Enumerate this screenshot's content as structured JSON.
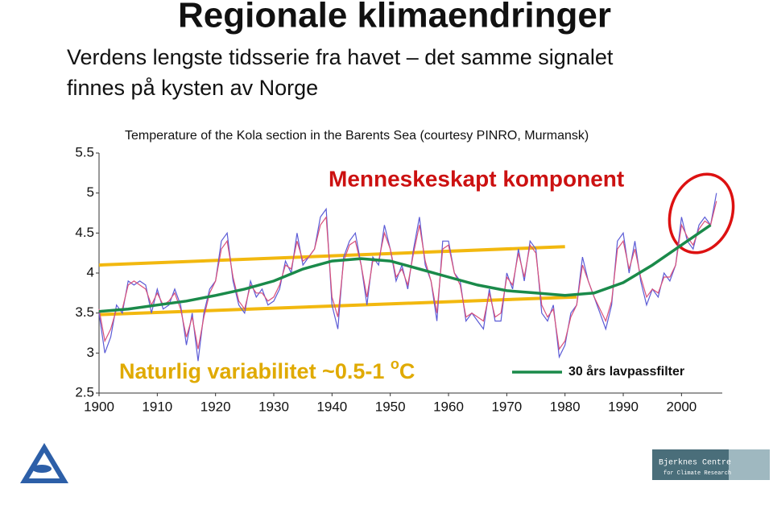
{
  "title": "Regionale klimaendringer",
  "subtitle": [
    "Verdens lengste tidsserie fra havet – det samme signalet",
    "finnes på kysten av Norge"
  ],
  "logo_text": [
    "Bjerknes Centre",
    "for Climate Research"
  ],
  "chart_data": {
    "type": "line",
    "title": "Temperature of the Kola section in the Barents Sea (courtesy PINRO, Murmansk)",
    "x": [
      1900,
      1901,
      1902,
      1903,
      1904,
      1905,
      1906,
      1907,
      1908,
      1909,
      1910,
      1911,
      1912,
      1913,
      1914,
      1915,
      1916,
      1917,
      1918,
      1919,
      1920,
      1921,
      1922,
      1923,
      1924,
      1925,
      1926,
      1927,
      1928,
      1929,
      1930,
      1931,
      1932,
      1933,
      1934,
      1935,
      1936,
      1937,
      1938,
      1939,
      1940,
      1941,
      1942,
      1943,
      1944,
      1945,
      1946,
      1947,
      1948,
      1949,
      1950,
      1951,
      1952,
      1953,
      1954,
      1955,
      1956,
      1957,
      1958,
      1959,
      1960,
      1961,
      1962,
      1963,
      1964,
      1965,
      1966,
      1967,
      1968,
      1969,
      1970,
      1971,
      1972,
      1973,
      1974,
      1975,
      1976,
      1977,
      1978,
      1979,
      1980,
      1981,
      1982,
      1983,
      1984,
      1985,
      1986,
      1987,
      1988,
      1989,
      1990,
      1991,
      1992,
      1993,
      1994,
      1995,
      1996,
      1997,
      1998,
      1999,
      2000,
      2001,
      2002,
      2003,
      2004,
      2005,
      2006
    ],
    "series": [
      {
        "color": "#5b5bd6",
        "values": [
          3.5,
          3.0,
          3.2,
          3.6,
          3.5,
          3.9,
          3.85,
          3.9,
          3.85,
          3.5,
          3.8,
          3.55,
          3.6,
          3.8,
          3.6,
          3.1,
          3.5,
          2.9,
          3.5,
          3.8,
          3.9,
          4.4,
          4.5,
          3.9,
          3.6,
          3.5,
          3.9,
          3.7,
          3.8,
          3.6,
          3.65,
          3.8,
          4.15,
          4.0,
          4.5,
          4.1,
          4.2,
          4.3,
          4.7,
          4.8,
          3.6,
          3.3,
          4.2,
          4.4,
          4.5,
          4.1,
          3.6,
          4.2,
          4.1,
          4.6,
          4.3,
          3.9,
          4.1,
          3.8,
          4.3,
          4.7,
          4.1,
          3.9,
          3.4,
          4.4,
          4.4,
          4.0,
          3.9,
          3.4,
          3.5,
          3.4,
          3.3,
          3.8,
          3.4,
          3.4,
          4.0,
          3.8,
          4.3,
          3.9,
          4.4,
          4.3,
          3.5,
          3.4,
          3.6,
          2.95,
          3.1,
          3.5,
          3.6,
          4.2,
          3.9,
          3.7,
          3.5,
          3.3,
          3.6,
          4.4,
          4.5,
          4.0,
          4.4,
          3.9,
          3.6,
          3.8,
          3.7,
          4.0,
          3.9,
          4.1,
          4.7,
          4.4,
          4.3,
          4.6,
          4.7,
          4.6,
          5.0
        ]
      },
      {
        "color": "#d9507a",
        "values": [
          3.55,
          3.15,
          3.3,
          3.55,
          3.55,
          3.85,
          3.9,
          3.85,
          3.8,
          3.6,
          3.75,
          3.6,
          3.65,
          3.75,
          3.55,
          3.2,
          3.45,
          3.05,
          3.45,
          3.75,
          3.9,
          4.3,
          4.4,
          3.95,
          3.65,
          3.55,
          3.85,
          3.75,
          3.75,
          3.65,
          3.7,
          3.85,
          4.1,
          4.05,
          4.4,
          4.15,
          4.2,
          4.3,
          4.6,
          4.7,
          3.7,
          3.45,
          4.15,
          4.35,
          4.4,
          4.1,
          3.7,
          4.15,
          4.15,
          4.5,
          4.3,
          3.95,
          4.05,
          3.85,
          4.25,
          4.6,
          4.15,
          3.9,
          3.5,
          4.3,
          4.35,
          4.0,
          3.85,
          3.45,
          3.5,
          3.45,
          3.4,
          3.75,
          3.45,
          3.5,
          3.95,
          3.85,
          4.25,
          3.95,
          4.35,
          4.25,
          3.6,
          3.45,
          3.55,
          3.05,
          3.15,
          3.45,
          3.6,
          4.1,
          3.9,
          3.7,
          3.55,
          3.4,
          3.65,
          4.3,
          4.4,
          4.05,
          4.3,
          3.95,
          3.7,
          3.8,
          3.75,
          3.95,
          3.95,
          4.1,
          4.6,
          4.45,
          4.35,
          4.55,
          4.65,
          4.6,
          4.9
        ]
      },
      {
        "name": "30 års lavpassfilter",
        "color": "#1a8a4a",
        "x": [
          1900,
          1905,
          1910,
          1915,
          1920,
          1925,
          1930,
          1935,
          1940,
          1945,
          1950,
          1955,
          1960,
          1965,
          1970,
          1975,
          1980,
          1985,
          1990,
          1995,
          2000,
          2005
        ],
        "values": [
          3.52,
          3.55,
          3.6,
          3.65,
          3.72,
          3.8,
          3.9,
          4.05,
          4.15,
          4.18,
          4.15,
          4.05,
          3.95,
          3.85,
          3.78,
          3.75,
          3.72,
          3.75,
          3.88,
          4.1,
          4.35,
          4.6
        ]
      }
    ],
    "reference_lines": [
      {
        "color": "#f2b80f",
        "x": [
          1900,
          1980
        ],
        "y": [
          4.1,
          4.33
        ]
      },
      {
        "color": "#f2b80f",
        "x": [
          1900,
          1982
        ],
        "y": [
          3.48,
          3.7
        ]
      }
    ],
    "annotations": [
      {
        "text": "Menneskeskapt komponent",
        "color": "#cc1111"
      },
      {
        "text": "Naturlig variabilitet ~0.5-1 ",
        "sup": "o",
        "after": "C",
        "color": "#e0aa00"
      }
    ],
    "xlim": [
      1900,
      2007
    ],
    "ylim": [
      2.5,
      5.5
    ],
    "xticks": [
      1900,
      1910,
      1920,
      1930,
      1940,
      1950,
      1960,
      1970,
      1980,
      1990,
      2000
    ],
    "yticks": [
      2.5,
      3,
      3.5,
      4,
      4.5,
      5,
      5.5
    ]
  }
}
